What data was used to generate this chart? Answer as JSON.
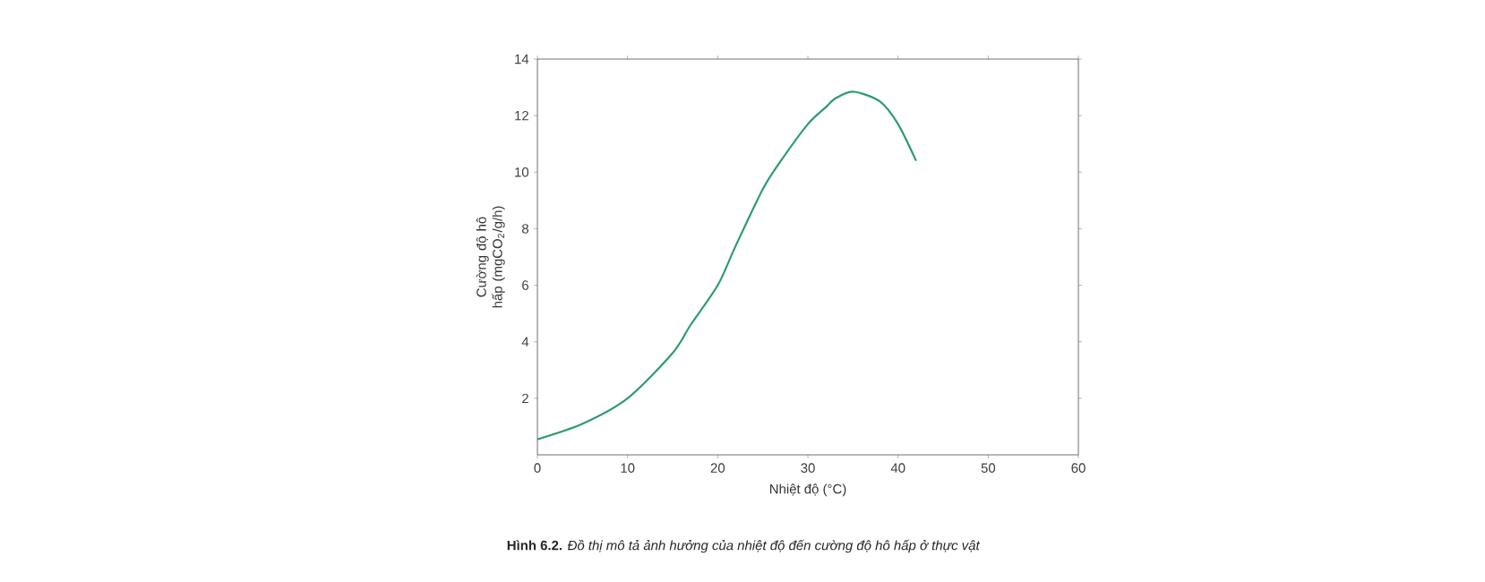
{
  "chart_data": {
    "type": "line",
    "xlabel": "Nhiệt độ (°C)",
    "ylabel": "Cường độ hô hấp (mgCO$_{2}$/g/h)",
    "annotations": [
      "**Hình 6.2.** *Đồ thị mô tả ảnh hưởng của nhiệt độ đến cường độ hô hấp ở thực vật*"
    ],
    "x": [
      0,
      5,
      10,
      15,
      17,
      20,
      22,
      25,
      27,
      30,
      32,
      33,
      35,
      38,
      40,
      42
    ],
    "series": [
      {
        "color": "#2e9b6e",
        "values": [
          0.55,
          1.1,
          2.0,
          3.6,
          4.6,
          6.0,
          7.4,
          9.4,
          10.4,
          11.7,
          12.3,
          12.6,
          12.85,
          12.5,
          11.7,
          10.4
        ]
      }
    ],
    "xlim": [
      0,
      60
    ],
    "xticks": [
      0,
      10,
      20,
      30,
      40,
      50,
      60
    ],
    "ylim": [
      0,
      14
    ],
    "yticks": [
      2,
      4,
      6,
      8,
      10,
      12,
      14
    ],
    "grid": false,
    "line_style": "solid"
  }
}
